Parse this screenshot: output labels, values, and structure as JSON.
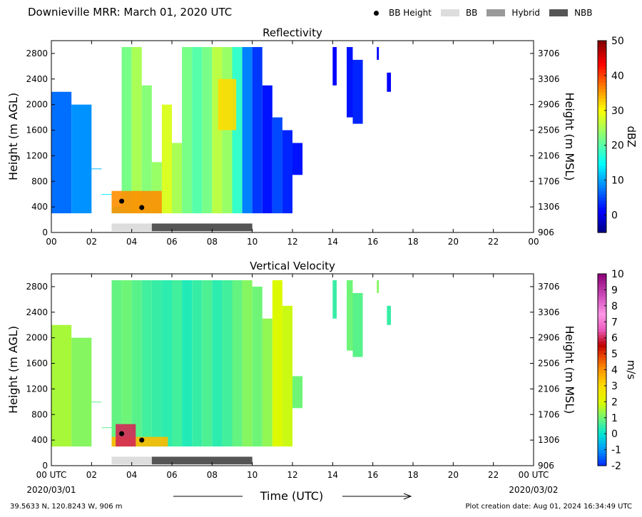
{
  "header": {
    "title": "Downieville MRR:  March 01, 2020 UTC",
    "legend": [
      {
        "label": "BB Height",
        "kind": "dot",
        "color": "#000000"
      },
      {
        "label": "BB",
        "kind": "box",
        "color": "#dddddd"
      },
      {
        "label": "Hybrid",
        "kind": "box",
        "color": "#999999"
      },
      {
        "label": "NBB",
        "kind": "box",
        "color": "#555555"
      }
    ]
  },
  "footer": {
    "location": "39.5633 N, 120.8243 W, 906 m",
    "created": "Plot creation date: Aug 01, 2024 16:34:49 UTC"
  },
  "chart_data": [
    {
      "type": "heatmap",
      "title": "Reflectivity",
      "ylabel": "Height (m AGL)",
      "ylabel_right": "Height (m MSL)",
      "xlim": [
        0,
        24
      ],
      "ylim": [
        0,
        3000
      ],
      "x_ticks": [
        "00",
        "02",
        "04",
        "06",
        "08",
        "10",
        "12",
        "14",
        "16",
        "18",
        "20",
        "22",
        "00"
      ],
      "y_ticks": [
        0,
        400,
        800,
        1200,
        1600,
        2000,
        2400,
        2800
      ],
      "y_ticks_right": [
        906,
        1306,
        1706,
        2106,
        2506,
        2906,
        3306,
        3706
      ],
      "colorbar": {
        "label": "dBZ",
        "min": -5,
        "max": 50,
        "ticks": [
          0,
          10,
          20,
          30,
          40,
          50
        ],
        "scheme": "jet"
      },
      "cells": [
        {
          "x0": 0.0,
          "x1": 1.0,
          "ytop": 2200,
          "v": 7
        },
        {
          "x0": 1.0,
          "x1": 2.0,
          "ytop": 2000,
          "v": 9
        },
        {
          "x0": 2.0,
          "x1": 2.5,
          "ytop": 1000,
          "v": 11
        },
        {
          "x0": 2.5,
          "x1": 3.0,
          "ytop": 600,
          "v": 14
        },
        {
          "x0": 3.0,
          "x1": 3.5,
          "ytop": 400,
          "v": 18
        },
        {
          "x0": 3.5,
          "x1": 4.0,
          "ytop": 2900,
          "v": 22
        },
        {
          "x0": 4.0,
          "x1": 4.5,
          "ytop": 2900,
          "v": 25
        },
        {
          "x0": 4.5,
          "x1": 5.0,
          "ytop": 2300,
          "v": 23
        },
        {
          "x0": 5.0,
          "x1": 5.5,
          "ytop": 1100,
          "v": 24
        },
        {
          "x0": 5.5,
          "x1": 6.0,
          "ytop": 2000,
          "v": 28
        },
        {
          "x0": 6.0,
          "x1": 6.5,
          "ytop": 1400,
          "v": 25
        },
        {
          "x0": 6.5,
          "x1": 7.0,
          "ytop": 2900,
          "v": 22
        },
        {
          "x0": 7.0,
          "x1": 7.5,
          "ytop": 2900,
          "v": 20
        },
        {
          "x0": 7.5,
          "x1": 8.0,
          "ytop": 2900,
          "v": 22
        },
        {
          "x0": 8.0,
          "x1": 8.5,
          "ytop": 2900,
          "v": 26
        },
        {
          "x0": 8.5,
          "x1": 9.0,
          "ytop": 2900,
          "v": 24
        },
        {
          "x0": 9.0,
          "x1": 9.5,
          "ytop": 2900,
          "v": 18
        },
        {
          "x0": 9.5,
          "x1": 10.0,
          "ytop": 2900,
          "v": 8
        },
        {
          "x0": 10.0,
          "x1": 10.5,
          "ytop": 2900,
          "v": 4
        },
        {
          "x0": 10.5,
          "x1": 11.0,
          "ytop": 2300,
          "v": 2
        },
        {
          "x0": 11.0,
          "x1": 11.5,
          "ytop": 1800,
          "v": 5
        },
        {
          "x0": 11.5,
          "x1": 12.0,
          "ytop": 1600,
          "v": 3
        },
        {
          "x0": 12.0,
          "x1": 12.5,
          "ytop": 1400,
          "v": 2
        },
        {
          "x0": 14.0,
          "x1": 14.2,
          "ytop": 2900,
          "v": 1
        },
        {
          "x0": 14.7,
          "x1": 15.0,
          "ytop": 2900,
          "v": 2
        },
        {
          "x0": 15.0,
          "x1": 15.5,
          "ytop": 2700,
          "v": 3
        },
        {
          "x0": 16.2,
          "x1": 16.3,
          "ytop": 2900,
          "v": 1
        },
        {
          "x0": 16.7,
          "x1": 16.9,
          "ytop": 2500,
          "v": 1
        }
      ],
      "cell_bottoms": [
        {
          "x0": 2.0,
          "x1": 2.5,
          "ybot": 1000
        },
        {
          "x0": 2.5,
          "x1": 3.0,
          "ybot": 600
        },
        {
          "x0": 10.0,
          "x1": 10.5,
          "ybot": 300
        },
        {
          "x0": 11.0,
          "x1": 12.0,
          "ybot": 300
        },
        {
          "x0": 12.0,
          "x1": 12.5,
          "ybot": 900
        },
        {
          "x0": 14.0,
          "x1": 14.2,
          "ybot": 2300
        },
        {
          "x0": 14.7,
          "x1": 15.0,
          "ybot": 1800
        },
        {
          "x0": 15.0,
          "x1": 15.5,
          "ybot": 1700
        },
        {
          "x0": 16.2,
          "x1": 16.3,
          "ybot": 2700
        },
        {
          "x0": 16.7,
          "x1": 16.9,
          "ybot": 2200
        },
        {
          "x0": 3.5,
          "x1": 4.0,
          "ybot": 300
        },
        {
          "x0": 4.0,
          "x1": 4.5,
          "ybot": 300
        },
        {
          "x0": 4.5,
          "x1": 5.0,
          "ybot": 300
        },
        {
          "x0": 5.0,
          "x1": 5.5,
          "ybot": 300
        },
        {
          "x0": 5.5,
          "x1": 6.0,
          "ybot": 300
        },
        {
          "x0": 6.0,
          "x1": 6.5,
          "ybot": 300
        },
        {
          "x0": 6.5,
          "x1": 7.0,
          "ybot": 300
        },
        {
          "x0": 7.0,
          "x1": 7.5,
          "ybot": 300
        },
        {
          "x0": 7.5,
          "x1": 8.0,
          "ybot": 300
        },
        {
          "x0": 8.0,
          "x1": 8.5,
          "ybot": 300
        },
        {
          "x0": 8.5,
          "x1": 9.0,
          "ybot": 300
        },
        {
          "x0": 9.0,
          "x1": 9.5,
          "ybot": 300
        },
        {
          "x0": 9.5,
          "x1": 10.0,
          "ybot": 300
        }
      ],
      "hotspots": [
        {
          "x0": 3.0,
          "x1": 5.5,
          "ybot": 300,
          "ytop": 650,
          "v": 36
        },
        {
          "x0": 8.3,
          "x1": 9.2,
          "ybot": 1600,
          "ytop": 2400,
          "v": 32
        }
      ],
      "bb_points": [
        {
          "x": 3.5,
          "y": 490
        },
        {
          "x": 4.5,
          "y": 390
        }
      ],
      "bb_types": [
        {
          "type": "BB",
          "x0": 3.0,
          "x1": 5.0
        },
        {
          "type": "NBB",
          "x0": 5.0,
          "x1": 10.0
        }
      ]
    },
    {
      "type": "heatmap",
      "title": "Vertical Velocity",
      "ylabel": "Height (m AGL)",
      "ylabel_right": "Height (m MSL)",
      "xlabel": "Time (UTC)",
      "xlim": [
        0,
        24
      ],
      "ylim": [
        0,
        3000
      ],
      "x_ticks": [
        "00 UTC",
        "02",
        "04",
        "06",
        "08",
        "10",
        "12",
        "14",
        "16",
        "18",
        "20",
        "22",
        "00 UTC"
      ],
      "x_dates": [
        "2020/03/01",
        "2020/03/02"
      ],
      "y_ticks": [
        0,
        400,
        800,
        1200,
        1600,
        2000,
        2400,
        2800
      ],
      "y_ticks_right": [
        906,
        1306,
        1706,
        2106,
        2506,
        2906,
        3306,
        3706
      ],
      "colorbar": {
        "label": "m/s",
        "min": -2,
        "max": 10,
        "ticks": [
          -2,
          -1,
          0,
          1,
          2,
          3,
          4,
          5,
          6,
          7,
          8,
          9,
          10
        ],
        "scheme": "vv"
      },
      "cells": [
        {
          "x0": 0.0,
          "x1": 1.0,
          "ytop": 2200,
          "v": 1.5
        },
        {
          "x0": 1.0,
          "x1": 2.0,
          "ytop": 2000,
          "v": 1.2
        },
        {
          "x0": 2.0,
          "x1": 2.5,
          "ytop": 1000,
          "v": 0.8
        },
        {
          "x0": 2.5,
          "x1": 3.0,
          "ytop": 600,
          "v": 0.8
        },
        {
          "x0": 3.0,
          "x1": 3.5,
          "ytop": 2900,
          "v": 0.9
        },
        {
          "x0": 3.5,
          "x1": 4.0,
          "ytop": 2900,
          "v": 1.0
        },
        {
          "x0": 4.0,
          "x1": 4.5,
          "ytop": 2900,
          "v": 0.8
        },
        {
          "x0": 4.5,
          "x1": 5.0,
          "ytop": 2900,
          "v": 0.6
        },
        {
          "x0": 5.0,
          "x1": 5.5,
          "ytop": 2900,
          "v": 0.5
        },
        {
          "x0": 5.5,
          "x1": 6.0,
          "ytop": 2900,
          "v": 0.4
        },
        {
          "x0": 6.0,
          "x1": 6.5,
          "ytop": 2900,
          "v": 0.6
        },
        {
          "x0": 6.5,
          "x1": 7.0,
          "ytop": 2900,
          "v": 0.3
        },
        {
          "x0": 7.0,
          "x1": 7.5,
          "ytop": 2900,
          "v": 0.5
        },
        {
          "x0": 7.5,
          "x1": 8.0,
          "ytop": 2900,
          "v": 0.7
        },
        {
          "x0": 8.0,
          "x1": 8.5,
          "ytop": 2900,
          "v": 0.4
        },
        {
          "x0": 8.5,
          "x1": 9.0,
          "ytop": 2900,
          "v": 0.6
        },
        {
          "x0": 9.0,
          "x1": 9.5,
          "ytop": 2900,
          "v": 0.9
        },
        {
          "x0": 9.5,
          "x1": 10.0,
          "ytop": 2900,
          "v": 1.2
        },
        {
          "x0": 10.0,
          "x1": 10.5,
          "ytop": 2800,
          "v": 1.0
        },
        {
          "x0": 10.5,
          "x1": 11.0,
          "ytop": 2300,
          "v": 1.3
        },
        {
          "x0": 11.0,
          "x1": 11.5,
          "ytop": 2900,
          "v": 2.0
        },
        {
          "x0": 11.5,
          "x1": 12.0,
          "ytop": 2500,
          "v": 1.8
        },
        {
          "x0": 12.0,
          "x1": 12.5,
          "ytop": 1400,
          "v": 1.0
        },
        {
          "x0": 14.0,
          "x1": 14.2,
          "ytop": 2900,
          "v": 0.5
        },
        {
          "x0": 14.7,
          "x1": 15.0,
          "ytop": 2900,
          "v": 1.0
        },
        {
          "x0": 15.0,
          "x1": 15.5,
          "ytop": 2700,
          "v": 0.8
        },
        {
          "x0": 16.2,
          "x1": 16.3,
          "ytop": 2900,
          "v": 1.2
        },
        {
          "x0": 16.7,
          "x1": 16.9,
          "ytop": 2500,
          "v": 0.5
        }
      ],
      "cell_bottoms": [
        {
          "x0": 2.0,
          "x1": 2.5,
          "ybot": 1000
        },
        {
          "x0": 2.5,
          "x1": 3.0,
          "ybot": 600
        },
        {
          "x0": 10.0,
          "x1": 10.5,
          "ybot": 300
        },
        {
          "x0": 11.0,
          "x1": 12.0,
          "ybot": 300
        },
        {
          "x0": 12.0,
          "x1": 12.5,
          "ybot": 900
        },
        {
          "x0": 14.0,
          "x1": 14.2,
          "ybot": 2300
        },
        {
          "x0": 14.7,
          "x1": 15.0,
          "ybot": 1800
        },
        {
          "x0": 15.0,
          "x1": 15.5,
          "ybot": 1700
        },
        {
          "x0": 16.2,
          "x1": 16.3,
          "ybot": 2700
        },
        {
          "x0": 16.7,
          "x1": 16.9,
          "ybot": 2200
        },
        {
          "x0": 3.0,
          "x1": 3.5,
          "ybot": 300
        },
        {
          "x0": 3.5,
          "x1": 4.0,
          "ybot": 300
        },
        {
          "x0": 4.0,
          "x1": 4.5,
          "ybot": 300
        },
        {
          "x0": 4.5,
          "x1": 5.0,
          "ybot": 300
        },
        {
          "x0": 5.0,
          "x1": 5.5,
          "ybot": 300
        },
        {
          "x0": 5.5,
          "x1": 6.0,
          "ybot": 300
        },
        {
          "x0": 6.0,
          "x1": 6.5,
          "ybot": 300
        },
        {
          "x0": 6.5,
          "x1": 7.0,
          "ybot": 300
        },
        {
          "x0": 7.0,
          "x1": 7.5,
          "ybot": 300
        },
        {
          "x0": 7.5,
          "x1": 8.0,
          "ybot": 300
        },
        {
          "x0": 8.0,
          "x1": 8.5,
          "ybot": 300
        },
        {
          "x0": 8.5,
          "x1": 9.0,
          "ybot": 300
        },
        {
          "x0": 9.0,
          "x1": 9.5,
          "ybot": 300
        },
        {
          "x0": 9.5,
          "x1": 10.0,
          "ybot": 300
        }
      ],
      "hotspots": [
        {
          "x0": 3.0,
          "x1": 5.8,
          "ybot": 300,
          "ytop": 450,
          "v": 3.5
        },
        {
          "x0": 3.2,
          "x1": 4.2,
          "ybot": 300,
          "ytop": 650,
          "v": 6.0
        }
      ],
      "bb_points": [
        {
          "x": 3.5,
          "y": 500
        },
        {
          "x": 4.5,
          "y": 400
        }
      ],
      "bb_types": [
        {
          "type": "BB",
          "x0": 3.0,
          "x1": 5.0
        },
        {
          "type": "NBB",
          "x0": 5.0,
          "x1": 10.0
        }
      ]
    }
  ]
}
